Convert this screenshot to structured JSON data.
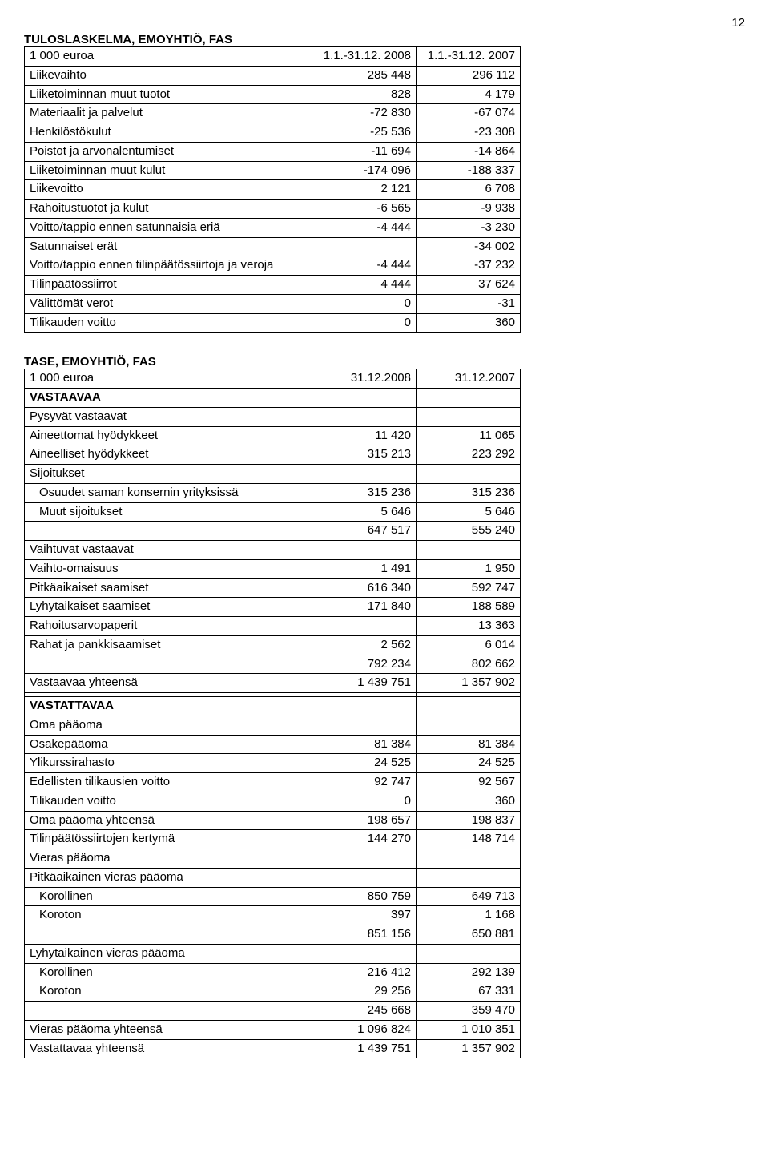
{
  "page_number": "12",
  "table1": {
    "title": "TULOSLASKELMA, EMOYHTIÖ, FAS",
    "header_row": [
      "1 000 euroa",
      "1.1.-31.12. 2008",
      "1.1.-31.12. 2007"
    ],
    "rows": [
      {
        "label": "Liikevaihto",
        "c1": "285 448",
        "c2": "296 112"
      },
      {
        "label": "Liiketoiminnan muut tuotot",
        "c1": "828",
        "c2": "4 179"
      },
      {
        "label": "Materiaalit ja palvelut",
        "c1": "-72 830",
        "c2": "-67 074"
      },
      {
        "label": "Henkilöstökulut",
        "c1": "-25 536",
        "c2": "-23 308"
      },
      {
        "label": "Poistot ja arvonalentumiset",
        "c1": "-11 694",
        "c2": "-14 864"
      },
      {
        "label": "Liiketoiminnan muut kulut",
        "c1": "-174 096",
        "c2": "-188 337"
      },
      {
        "label": "Liikevoitto",
        "c1": "2 121",
        "c2": "6 708"
      },
      {
        "label": "Rahoitustuotot ja kulut",
        "c1": "-6 565",
        "c2": "-9 938"
      },
      {
        "label": "Voitto/tappio ennen satunnaisia eriä",
        "c1": "-4 444",
        "c2": "-3 230"
      },
      {
        "label": "Satunnaiset erät",
        "c1": "",
        "c2": "-34 002"
      },
      {
        "label": "Voitto/tappio ennen tilinpäätössiirtoja ja veroja",
        "c1": "-4 444",
        "c2": "-37 232"
      },
      {
        "label": "Tilinpäätössiirrot",
        "c1": "4 444",
        "c2": "37 624"
      },
      {
        "label": "Välittömät verot",
        "c1": "0",
        "c2": "-31"
      },
      {
        "label": "Tilikauden voitto",
        "c1": "0",
        "c2": "360"
      }
    ]
  },
  "table2": {
    "title": "TASE, EMOYHTIÖ, FAS",
    "header_row": [
      "1 000 euroa",
      "31.12.2008",
      "31.12.2007"
    ],
    "rows": [
      {
        "label": "VASTAAVAA",
        "c1": "",
        "c2": "",
        "bold": true
      },
      {
        "label": "Pysyvät vastaavat",
        "c1": "",
        "c2": ""
      },
      {
        "label": "Aineettomat hyödykkeet",
        "c1": "11 420",
        "c2": "11 065"
      },
      {
        "label": "Aineelliset hyödykkeet",
        "c1": "315 213",
        "c2": "223 292"
      },
      {
        "label": "Sijoitukset",
        "c1": "",
        "c2": ""
      },
      {
        "label": "Osuudet saman konsernin yrityksissä",
        "c1": "315 236",
        "c2": "315 236",
        "indent": true
      },
      {
        "label": "Muut sijoitukset",
        "c1": "5 646",
        "c2": "5 646",
        "indent": true
      },
      {
        "label": "",
        "c1": "647 517",
        "c2": "555 240"
      },
      {
        "label": "Vaihtuvat vastaavat",
        "c1": "",
        "c2": ""
      },
      {
        "label": "Vaihto-omaisuus",
        "c1": "1 491",
        "c2": "1 950"
      },
      {
        "label": "Pitkäaikaiset saamiset",
        "c1": "616 340",
        "c2": "592 747"
      },
      {
        "label": "Lyhytaikaiset saamiset",
        "c1": "171 840",
        "c2": "188 589"
      },
      {
        "label": "Rahoitusarvopaperit",
        "c1": "",
        "c2": "13 363"
      },
      {
        "label": "Rahat ja pankkisaamiset",
        "c1": "2 562",
        "c2": "6 014"
      },
      {
        "label": "",
        "c1": "792 234",
        "c2": "802 662"
      },
      {
        "label": "Vastaavaa yhteensä",
        "c1": "1 439 751",
        "c2": "1 357 902"
      },
      {
        "label": "",
        "c1": "",
        "c2": ""
      },
      {
        "label": "VASTATTAVAA",
        "c1": "",
        "c2": "",
        "bold": true
      },
      {
        "label": "Oma pääoma",
        "c1": "",
        "c2": ""
      },
      {
        "label": "Osakepääoma",
        "c1": "81 384",
        "c2": "81 384"
      },
      {
        "label": "Ylikurssirahasto",
        "c1": "24 525",
        "c2": "24 525"
      },
      {
        "label": "Edellisten tilikausien voitto",
        "c1": "92 747",
        "c2": "92 567"
      },
      {
        "label": "Tilikauden voitto",
        "c1": "0",
        "c2": "360"
      },
      {
        "label": "Oma pääoma yhteensä",
        "c1": "198 657",
        "c2": "198 837"
      },
      {
        "label": "Tilinpäätössiirtojen kertymä",
        "c1": "144 270",
        "c2": "148 714"
      },
      {
        "label": "Vieras pääoma",
        "c1": "",
        "c2": ""
      },
      {
        "label": "Pitkäaikainen vieras pääoma",
        "c1": "",
        "c2": ""
      },
      {
        "label": "Korollinen",
        "c1": "850 759",
        "c2": "649 713",
        "indent": true
      },
      {
        "label": "Koroton",
        "c1": "397",
        "c2": "1 168",
        "indent": true
      },
      {
        "label": "",
        "c1": "851 156",
        "c2": "650 881"
      },
      {
        "label": "Lyhytaikainen vieras pääoma",
        "c1": "",
        "c2": ""
      },
      {
        "label": "Korollinen",
        "c1": "216 412",
        "c2": "292 139",
        "indent": true
      },
      {
        "label": "Koroton",
        "c1": "29 256",
        "c2": "67 331",
        "indent": true
      },
      {
        "label": "",
        "c1": "245 668",
        "c2": "359 470"
      },
      {
        "label": "Vieras pääoma yhteensä",
        "c1": "1 096 824",
        "c2": "1 010 351"
      },
      {
        "label": "Vastattavaa yhteensä",
        "c1": "1 439 751",
        "c2": "1 357 902"
      }
    ]
  }
}
